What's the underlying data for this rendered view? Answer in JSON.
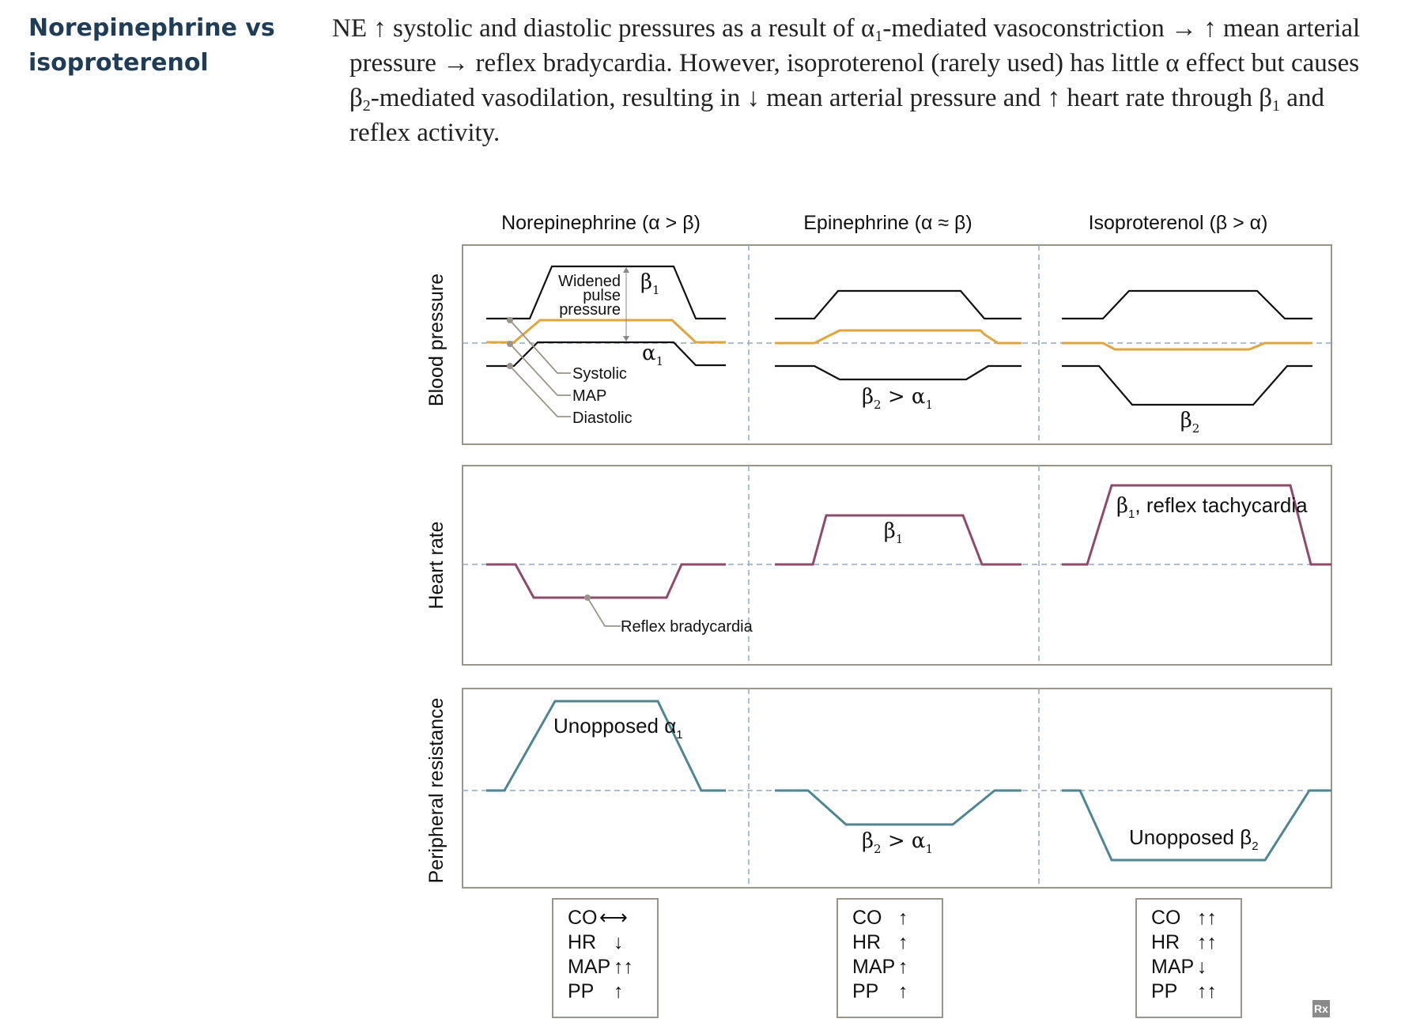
{
  "topic": {
    "line1": "Norepinephrine vs",
    "line2": "isoproterenol"
  },
  "paragraph": {
    "l1a": "NE ↑ systolic and diastolic pressures as a result of α",
    "l1_sub": "1",
    "l1b": "-mediated vasoconstriction → ↑ mean arterial",
    "l2": "pressure → reflex bradycardia. However, isoproterenol (rarely used) has little α effect but causes",
    "l3a": "β",
    "l3_sub1": "2",
    "l3b": "-mediated vasodilation, resulting in ↓ mean arterial pressure and ↑ heart rate through β",
    "l3_sub2": "1",
    "l3c": " and",
    "l4": "reflex activity."
  },
  "figure": {
    "columns": [
      "Norepinephrine (α > β)",
      "Epinephrine (α ≈ β)",
      "Isoproterenol (β > α)"
    ],
    "rows": [
      "Blood pressure",
      "Heart rate",
      "Peripheral resistance"
    ],
    "bp": {
      "ne_widened": "Widened",
      "ne_pulse": "pulse",
      "ne_pressure": "pressure",
      "ne_beta": "β",
      "ne_beta_sub": "1",
      "ne_alpha": "α",
      "ne_alpha_sub": "1",
      "legend_systolic": "Systolic",
      "legend_map": "MAP",
      "legend_diastolic": "Diastolic",
      "epi_label_a": "β",
      "epi_label_sub1": "2",
      "epi_label_b": " > α",
      "epi_label_sub2": "1",
      "iso_label": "β",
      "iso_label_sub": "2"
    },
    "hr": {
      "ne_label": "Reflex bradycardia",
      "epi_label": "β",
      "epi_label_sub": "1",
      "iso_label_a": "β",
      "iso_label_sub": "1",
      "iso_label_b": ", reflex tachycardia"
    },
    "pr": {
      "ne_label_a": "Unopposed α",
      "ne_label_sub": "1",
      "epi_label_a": "β",
      "epi_label_sub1": "2",
      "epi_label_b": " > α",
      "epi_label_sub2": "1",
      "iso_label_a": "Unopposed β",
      "iso_label_sub": "2"
    },
    "summaries": [
      {
        "CO": "⟷",
        "HR": "↓",
        "MAP": "↑↑",
        "PP": "↑"
      },
      {
        "CO": "↑",
        "HR": "↑",
        "MAP": "↑",
        "PP": "↑"
      },
      {
        "CO": "↑↑",
        "HR": "↑↑",
        "MAP": "↓",
        "PP": "↑↑"
      }
    ],
    "summary_keys": [
      "CO",
      "HR",
      "MAP",
      "PP"
    ],
    "colors": {
      "systolic_diastolic": "#111111",
      "map": "#e0a53c",
      "heart_rate": "#8e4a6a",
      "resistance": "#4e8690",
      "baseline": "#8fa9c4",
      "frame": "#9a958a",
      "callout": "#9a958a"
    },
    "logo": "Rx"
  }
}
